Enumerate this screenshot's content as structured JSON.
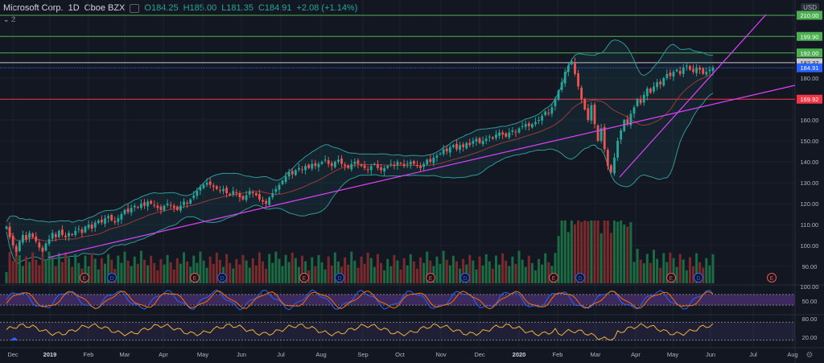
{
  "header": {
    "symbol": "Microsoft Corp.",
    "interval": "1D",
    "exchange": "Cboe BZX",
    "open": "O184.25",
    "high": "H185.00",
    "low": "L181.35",
    "close": "C184.91",
    "change": "+2.08 (+1.14%)",
    "indicator_count": "2"
  },
  "currency": "USD",
  "colors": {
    "background": "#131722",
    "up": "#26a69a",
    "down": "#ef5350",
    "green_level": "#4caf50",
    "red_level": "#f23645",
    "trendline": "#e040fb",
    "bb": "#2e9a98",
    "volume_up": "#1b6b43",
    "volume_down": "#7a2a2a",
    "rsi_fill": "#3c2a5e"
  },
  "price_axis": {
    "labels": [
      "210.00",
      "199.90",
      "192.00",
      "187.37",
      "184.91",
      "180.00",
      "169.92",
      "160.00",
      "150.00",
      "140.00",
      "130.00",
      "120.00",
      "110.00",
      "100.00",
      "90.00"
    ]
  },
  "rsi_axis": {
    "labels": [
      "100.00",
      "50.00"
    ]
  },
  "osc_axis": {
    "labels": [
      "80.00",
      "20.00"
    ]
  },
  "time_axis": {
    "labels": [
      "Dec",
      "2019",
      "Feb",
      "Mar",
      "Apr",
      "May",
      "Jun",
      "Jul",
      "Aug",
      "Sep",
      "Oct",
      "Nov",
      "Dec",
      "2020",
      "Feb",
      "Mar",
      "Apr",
      "May",
      "Jun",
      "Jul",
      "Aug"
    ]
  },
  "levels": {
    "green": [
      210,
      199.9,
      192
    ],
    "white": 187.37,
    "blue": 184.91,
    "red": 169.92
  },
  "events": {
    "labels": [
      "E",
      "D",
      "E",
      "D",
      "E",
      "D",
      "E",
      "D",
      "E",
      "D",
      "E",
      "D",
      "E"
    ]
  },
  "chart_data": {
    "type": "candlestick",
    "title": "",
    "ylim": [
      85,
      215
    ],
    "closes": [
      109,
      104,
      100,
      97,
      102,
      105,
      103,
      106,
      104,
      102,
      99,
      97,
      101,
      103,
      106,
      104,
      107,
      105,
      104,
      106,
      105,
      107,
      108,
      106,
      109,
      110,
      108,
      111,
      112,
      111,
      113,
      114,
      112,
      111,
      113,
      115,
      117,
      116,
      118,
      119,
      118,
      120,
      119,
      121,
      120,
      119,
      118,
      117,
      119,
      120,
      119,
      118,
      117,
      119,
      121,
      120,
      122,
      124,
      126,
      128,
      129,
      130,
      129,
      128,
      127,
      126,
      127,
      125,
      124,
      126,
      125,
      123,
      122,
      124,
      126,
      125,
      124,
      122,
      121,
      120,
      123,
      125,
      127,
      129,
      131,
      133,
      135,
      134,
      136,
      137,
      136,
      138,
      137,
      139,
      138,
      139,
      140,
      141,
      139,
      138,
      140,
      141,
      139,
      138,
      137,
      139,
      140,
      139,
      138,
      137,
      136,
      138,
      139,
      137,
      136,
      137,
      138,
      139,
      138,
      140,
      139,
      138,
      139,
      140,
      139,
      138,
      137,
      139,
      141,
      140,
      142,
      143,
      144,
      146,
      145,
      147,
      148,
      146,
      148,
      147,
      149,
      148,
      150,
      151,
      149,
      150,
      151,
      152,
      151,
      153,
      154,
      153,
      152,
      154,
      155,
      154,
      156,
      157,
      158,
      157,
      158,
      159,
      160,
      162,
      164,
      163,
      166,
      170,
      174,
      178,
      183,
      186,
      188,
      182,
      176,
      170,
      165,
      160,
      167,
      158,
      150,
      156,
      146,
      138,
      135,
      142,
      150,
      155,
      160,
      158,
      163,
      166,
      170,
      168,
      172,
      175,
      173,
      176,
      178,
      177,
      180,
      182,
      181,
      183,
      184,
      182,
      185,
      186,
      184,
      183,
      185,
      184,
      182,
      183,
      184,
      185
    ],
    "x_label_values": [
      "Dec",
      "2019",
      "Feb",
      "Mar",
      "Apr",
      "May",
      "Jun",
      "Jul",
      "Aug",
      "Sep",
      "Oct",
      "Nov",
      "Dec",
      "2020",
      "Feb",
      "Mar",
      "Apr",
      "May",
      "Jun",
      "Jul",
      "Aug"
    ]
  }
}
